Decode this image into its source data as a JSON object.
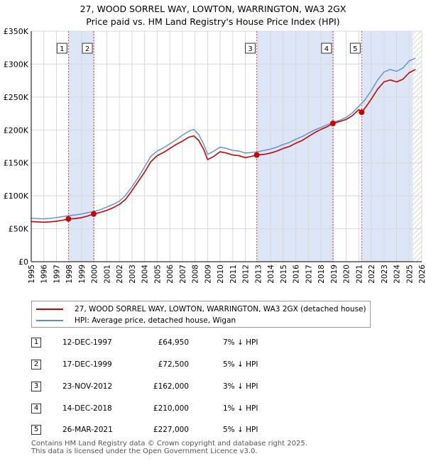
{
  "title_line1": "27, WOOD SORREL WAY, LOWTON, WARRINGTON, WA3 2GX",
  "title_line2": "Price paid vs. HM Land Registry's House Price Index (HPI)",
  "legend": {
    "red_label": "27, WOOD SORREL WAY, LOWTON, WARRINGTON, WA3 2GX (detached house)",
    "blue_label": "HPI: Average price, detached house, Wigan"
  },
  "colors": {
    "red": "#cc0000",
    "blue": "#5b8fd4",
    "shade": "#dde6f7",
    "grid": "#d8d8d8",
    "hatch": "#c8c8c8"
  },
  "transactions": [
    {
      "num": "1",
      "date": "12-DEC-1997",
      "price": "£64,950",
      "hpi": "7% ↓ HPI"
    },
    {
      "num": "2",
      "date": "17-DEC-1999",
      "price": "£72,500",
      "hpi": "5% ↓ HPI"
    },
    {
      "num": "3",
      "date": "23-NOV-2012",
      "price": "£162,000",
      "hpi": "3% ↓ HPI"
    },
    {
      "num": "4",
      "date": "14-DEC-2018",
      "price": "£210,000",
      "hpi": "1% ↓ HPI"
    },
    {
      "num": "5",
      "date": "26-MAR-2021",
      "price": "£227,000",
      "hpi": "5% ↓ HPI"
    }
  ],
  "footer_line1": "Contains HM Land Registry data © Crown copyright and database right 2025.",
  "footer_line2": "This data is licensed under the Open Government Licence v3.0.",
  "chart_data": {
    "type": "line",
    "title": "27, WOOD SORREL WAY, LOWTON, WARRINGTON, WA3 2GX",
    "subtitle": "Price paid vs. HM Land Registry's House Price Index (HPI)",
    "xlim": [
      1995,
      2026
    ],
    "ylim": [
      0,
      350000
    ],
    "y_ticks": [
      0,
      50000,
      100000,
      150000,
      200000,
      250000,
      300000,
      350000
    ],
    "y_tick_labels": [
      "£0",
      "£50K",
      "£100K",
      "£150K",
      "£200K",
      "£250K",
      "£300K",
      "£350K"
    ],
    "x_ticks": [
      1995,
      1996,
      1997,
      1998,
      1999,
      2000,
      2001,
      2002,
      2003,
      2004,
      2005,
      2006,
      2007,
      2008,
      2009,
      2010,
      2011,
      2012,
      2013,
      2014,
      2015,
      2016,
      2017,
      2018,
      2019,
      2020,
      2021,
      2022,
      2023,
      2024,
      2025,
      2026
    ],
    "grid": true,
    "series": [
      {
        "name": "27, WOOD SORREL WAY, LOWTON, WARRINGTON, WA3 2GX (detached house)",
        "color": "#cc0000",
        "points": [
          [
            1995.0,
            61000
          ],
          [
            1995.5,
            60500
          ],
          [
            1996.0,
            60000
          ],
          [
            1996.5,
            60500
          ],
          [
            1997.0,
            61500
          ],
          [
            1997.5,
            63000
          ],
          [
            1997.95,
            64950
          ],
          [
            1998.5,
            65500
          ],
          [
            1999.0,
            67000
          ],
          [
            1999.5,
            69500
          ],
          [
            1999.96,
            72500
          ],
          [
            2000.5,
            75000
          ],
          [
            2001.0,
            78000
          ],
          [
            2001.5,
            82000
          ],
          [
            2002.0,
            87000
          ],
          [
            2002.5,
            95000
          ],
          [
            2003.0,
            108000
          ],
          [
            2003.5,
            122000
          ],
          [
            2004.0,
            136000
          ],
          [
            2004.5,
            152000
          ],
          [
            2005.0,
            161000
          ],
          [
            2005.5,
            166000
          ],
          [
            2006.0,
            172000
          ],
          [
            2006.5,
            178000
          ],
          [
            2007.0,
            183000
          ],
          [
            2007.5,
            189000
          ],
          [
            2007.9,
            191000
          ],
          [
            2008.3,
            184000
          ],
          [
            2008.7,
            170000
          ],
          [
            2009.0,
            155000
          ],
          [
            2009.5,
            160000
          ],
          [
            2010.0,
            167000
          ],
          [
            2010.5,
            165000
          ],
          [
            2011.0,
            162000
          ],
          [
            2011.5,
            161000
          ],
          [
            2012.0,
            158000
          ],
          [
            2012.5,
            160000
          ],
          [
            2012.9,
            162000
          ],
          [
            2013.5,
            163000
          ],
          [
            2014.0,
            165000
          ],
          [
            2014.5,
            168000
          ],
          [
            2015.0,
            172000
          ],
          [
            2015.5,
            175000
          ],
          [
            2016.0,
            180000
          ],
          [
            2016.5,
            184000
          ],
          [
            2017.0,
            190000
          ],
          [
            2017.5,
            196000
          ],
          [
            2018.0,
            201000
          ],
          [
            2018.5,
            205000
          ],
          [
            2018.95,
            210000
          ],
          [
            2019.5,
            213000
          ],
          [
            2020.0,
            216000
          ],
          [
            2020.5,
            222000
          ],
          [
            2021.0,
            231000
          ],
          [
            2021.23,
            227000
          ],
          [
            2021.6,
            236000
          ],
          [
            2022.0,
            247000
          ],
          [
            2022.5,
            262000
          ],
          [
            2023.0,
            273000
          ],
          [
            2023.5,
            276000
          ],
          [
            2024.0,
            273000
          ],
          [
            2024.5,
            277000
          ],
          [
            2025.0,
            287000
          ],
          [
            2025.5,
            292000
          ]
        ]
      },
      {
        "name": "HPI: Average price, detached house, Wigan",
        "color": "#5b8fd4",
        "points": [
          [
            1995.0,
            66000
          ],
          [
            1995.5,
            65500
          ],
          [
            1996.0,
            65000
          ],
          [
            1996.5,
            65800
          ],
          [
            1997.0,
            67000
          ],
          [
            1997.5,
            68500
          ],
          [
            1998.0,
            70000
          ],
          [
            1998.5,
            71000
          ],
          [
            1999.0,
            72500
          ],
          [
            1999.5,
            74500
          ],
          [
            2000.0,
            76500
          ],
          [
            2000.5,
            79000
          ],
          [
            2001.0,
            83000
          ],
          [
            2001.5,
            87000
          ],
          [
            2002.0,
            92000
          ],
          [
            2002.5,
            101000
          ],
          [
            2003.0,
            114000
          ],
          [
            2003.5,
            128000
          ],
          [
            2004.0,
            144000
          ],
          [
            2004.5,
            160000
          ],
          [
            2005.0,
            168000
          ],
          [
            2005.5,
            173000
          ],
          [
            2006.0,
            179000
          ],
          [
            2006.5,
            185000
          ],
          [
            2007.0,
            192000
          ],
          [
            2007.5,
            198000
          ],
          [
            2007.9,
            201000
          ],
          [
            2008.3,
            193000
          ],
          [
            2008.7,
            178000
          ],
          [
            2009.0,
            163000
          ],
          [
            2009.5,
            168000
          ],
          [
            2010.0,
            174000
          ],
          [
            2010.5,
            172000
          ],
          [
            2011.0,
            169000
          ],
          [
            2011.5,
            168000
          ],
          [
            2012.0,
            165000
          ],
          [
            2012.5,
            166000
          ],
          [
            2013.0,
            167000
          ],
          [
            2013.5,
            169000
          ],
          [
            2014.0,
            171000
          ],
          [
            2014.5,
            174000
          ],
          [
            2015.0,
            178000
          ],
          [
            2015.5,
            181000
          ],
          [
            2016.0,
            186000
          ],
          [
            2016.5,
            190000
          ],
          [
            2017.0,
            195000
          ],
          [
            2017.5,
            200000
          ],
          [
            2018.0,
            204000
          ],
          [
            2018.5,
            208000
          ],
          [
            2019.0,
            212000
          ],
          [
            2019.5,
            215000
          ],
          [
            2020.0,
            219000
          ],
          [
            2020.5,
            226000
          ],
          [
            2021.0,
            236000
          ],
          [
            2021.5,
            246000
          ],
          [
            2022.0,
            260000
          ],
          [
            2022.5,
            276000
          ],
          [
            2023.0,
            288000
          ],
          [
            2023.5,
            292000
          ],
          [
            2024.0,
            289000
          ],
          [
            2024.5,
            294000
          ],
          [
            2025.0,
            305000
          ],
          [
            2025.5,
            309000
          ]
        ]
      }
    ],
    "sales": [
      {
        "num": "1",
        "x": 1997.95,
        "y": 64950
      },
      {
        "num": "2",
        "x": 1999.96,
        "y": 72500
      },
      {
        "num": "3",
        "x": 2012.9,
        "y": 162000
      },
      {
        "num": "4",
        "x": 2018.95,
        "y": 210000
      },
      {
        "num": "5",
        "x": 2021.23,
        "y": 227000
      }
    ],
    "shaded_ranges": [
      [
        1997.95,
        1999.96
      ],
      [
        2012.9,
        2018.95
      ],
      [
        2021.23,
        2025.3
      ]
    ],
    "forecast_hatch_from": 2025.3
  }
}
